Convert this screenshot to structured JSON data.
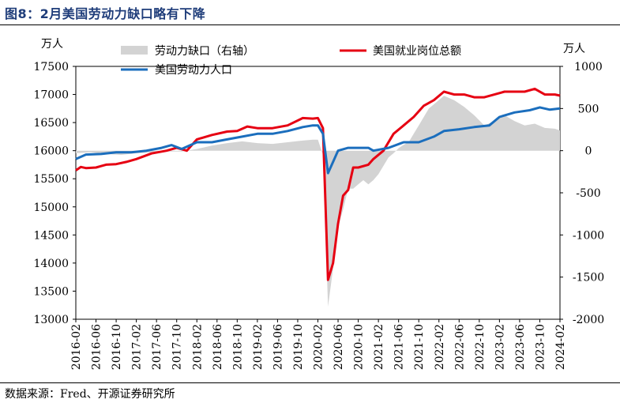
{
  "title": "图8：2月美国劳动力缺口略有下降",
  "source": "数据来源：Fred、开源证券研究所",
  "chart_data": {
    "type": "line",
    "left_unit": "万人",
    "right_unit": "万人",
    "left_ylim": [
      13000,
      17500
    ],
    "left_yticks": [
      "13000",
      "13500",
      "14000",
      "14500",
      "15000",
      "15500",
      "16000",
      "16500",
      "17000",
      "17500"
    ],
    "right_ylim": [
      -2000,
      1000
    ],
    "right_yticks": [
      "-2000",
      "-1500",
      "-1000",
      "-500",
      "0",
      "500",
      "1000"
    ],
    "x_start": "2016-02",
    "x_end": "2024-02",
    "x_ticks": [
      "2016-02",
      "2016-06",
      "2016-10",
      "2017-02",
      "2017-06",
      "2017-10",
      "2018-02",
      "2018-06",
      "2018-10",
      "2019-02",
      "2019-06",
      "2019-10",
      "2020-02",
      "2020-06",
      "2020-10",
      "2021-02",
      "2021-06",
      "2021-10",
      "2022-02",
      "2022-06",
      "2022-10",
      "2023-02",
      "2023-06",
      "2023-10",
      "2024-02"
    ],
    "legend": "top",
    "series": [
      {
        "name": "劳动力缺口（右轴）",
        "kind": "area",
        "axis": "right",
        "color": "#d3d3d3",
        "points": [
          [
            "2016-02",
            -30
          ],
          [
            "2016-05",
            -20
          ],
          [
            "2016-08",
            -40
          ],
          [
            "2016-11",
            -50
          ],
          [
            "2017-02",
            -30
          ],
          [
            "2017-05",
            -20
          ],
          [
            "2017-08",
            -10
          ],
          [
            "2017-11",
            -10
          ],
          [
            "2018-02",
            20
          ],
          [
            "2018-05",
            60
          ],
          [
            "2018-08",
            90
          ],
          [
            "2018-11",
            110
          ],
          [
            "2019-02",
            90
          ],
          [
            "2019-05",
            80
          ],
          [
            "2019-08",
            100
          ],
          [
            "2019-11",
            120
          ],
          [
            "2020-01",
            130
          ],
          [
            "2020-02",
            130
          ],
          [
            "2020-03",
            -50
          ],
          [
            "2020-04",
            -1850
          ],
          [
            "2020-05",
            -1400
          ],
          [
            "2020-06",
            -900
          ],
          [
            "2020-07",
            -700
          ],
          [
            "2020-08",
            -450
          ],
          [
            "2020-09",
            -450
          ],
          [
            "2020-10",
            -400
          ],
          [
            "2020-11",
            -350
          ],
          [
            "2020-12",
            -400
          ],
          [
            "2021-01",
            -350
          ],
          [
            "2021-02",
            -280
          ],
          [
            "2021-03",
            -180
          ],
          [
            "2021-04",
            -80
          ],
          [
            "2021-05",
            -30
          ],
          [
            "2021-06",
            30
          ],
          [
            "2021-07",
            70
          ],
          [
            "2021-08",
            100
          ],
          [
            "2021-09",
            200
          ],
          [
            "2021-10",
            300
          ],
          [
            "2021-11",
            400
          ],
          [
            "2021-12",
            500
          ],
          [
            "2022-01",
            550
          ],
          [
            "2022-03",
            650
          ],
          [
            "2022-05",
            600
          ],
          [
            "2022-07",
            520
          ],
          [
            "2022-09",
            420
          ],
          [
            "2022-11",
            300
          ],
          [
            "2023-01",
            350
          ],
          [
            "2023-03",
            420
          ],
          [
            "2023-05",
            350
          ],
          [
            "2023-07",
            300
          ],
          [
            "2023-09",
            320
          ],
          [
            "2023-11",
            270
          ],
          [
            "2024-01",
            260
          ],
          [
            "2024-02",
            240
          ]
        ]
      },
      {
        "name": "美国就业岗位总额",
        "kind": "line",
        "axis": "left",
        "color": "#e60012",
        "points": [
          [
            "2016-02",
            15650
          ],
          [
            "2016-03",
            15710
          ],
          [
            "2016-04",
            15690
          ],
          [
            "2016-06",
            15700
          ],
          [
            "2016-08",
            15750
          ],
          [
            "2016-10",
            15760
          ],
          [
            "2016-12",
            15800
          ],
          [
            "2017-02",
            15850
          ],
          [
            "2017-05",
            15950
          ],
          [
            "2017-08",
            16000
          ],
          [
            "2017-10",
            16050
          ],
          [
            "2017-12",
            16000
          ],
          [
            "2018-02",
            16200
          ],
          [
            "2018-05",
            16280
          ],
          [
            "2018-08",
            16340
          ],
          [
            "2018-10",
            16350
          ],
          [
            "2018-12",
            16430
          ],
          [
            "2019-02",
            16400
          ],
          [
            "2019-05",
            16400
          ],
          [
            "2019-08",
            16450
          ],
          [
            "2019-11",
            16580
          ],
          [
            "2020-01",
            16570
          ],
          [
            "2020-02",
            16580
          ],
          [
            "2020-03",
            16400
          ],
          [
            "2020-04",
            13700
          ],
          [
            "2020-05",
            14000
          ],
          [
            "2020-06",
            14700
          ],
          [
            "2020-07",
            15200
          ],
          [
            "2020-08",
            15300
          ],
          [
            "2020-09",
            15700
          ],
          [
            "2020-10",
            15700
          ],
          [
            "2020-12",
            15750
          ],
          [
            "2021-01",
            15850
          ],
          [
            "2021-03",
            16000
          ],
          [
            "2021-05",
            16300
          ],
          [
            "2021-07",
            16450
          ],
          [
            "2021-09",
            16600
          ],
          [
            "2021-11",
            16800
          ],
          [
            "2022-01",
            16900
          ],
          [
            "2022-03",
            17050
          ],
          [
            "2022-05",
            17000
          ],
          [
            "2022-07",
            17000
          ],
          [
            "2022-09",
            16950
          ],
          [
            "2022-11",
            16950
          ],
          [
            "2023-01",
            17000
          ],
          [
            "2023-03",
            17050
          ],
          [
            "2023-05",
            17050
          ],
          [
            "2023-07",
            17050
          ],
          [
            "2023-09",
            17100
          ],
          [
            "2023-11",
            17000
          ],
          [
            "2024-01",
            17000
          ],
          [
            "2024-02",
            16980
          ]
        ]
      },
      {
        "name": "美国劳动力人口",
        "kind": "line",
        "axis": "left",
        "color": "#1b6ebd",
        "points": [
          [
            "2016-02",
            15850
          ],
          [
            "2016-04",
            15930
          ],
          [
            "2016-07",
            15940
          ],
          [
            "2016-10",
            15970
          ],
          [
            "2017-01",
            15970
          ],
          [
            "2017-04",
            16000
          ],
          [
            "2017-07",
            16050
          ],
          [
            "2017-09",
            16100
          ],
          [
            "2017-11",
            16030
          ],
          [
            "2018-02",
            16150
          ],
          [
            "2018-05",
            16150
          ],
          [
            "2018-08",
            16200
          ],
          [
            "2018-11",
            16250
          ],
          [
            "2019-02",
            16300
          ],
          [
            "2019-05",
            16300
          ],
          [
            "2019-08",
            16350
          ],
          [
            "2019-11",
            16420
          ],
          [
            "2020-01",
            16450
          ],
          [
            "2020-02",
            16450
          ],
          [
            "2020-03",
            16300
          ],
          [
            "2020-04",
            15600
          ],
          [
            "2020-05",
            15800
          ],
          [
            "2020-06",
            16000
          ],
          [
            "2020-08",
            16050
          ],
          [
            "2020-10",
            16050
          ],
          [
            "2020-12",
            16050
          ],
          [
            "2021-01",
            16000
          ],
          [
            "2021-04",
            16050
          ],
          [
            "2021-07",
            16150
          ],
          [
            "2021-10",
            16150
          ],
          [
            "2022-01",
            16250
          ],
          [
            "2022-03",
            16350
          ],
          [
            "2022-06",
            16380
          ],
          [
            "2022-09",
            16420
          ],
          [
            "2022-12",
            16450
          ],
          [
            "2023-02",
            16600
          ],
          [
            "2023-05",
            16680
          ],
          [
            "2023-08",
            16720
          ],
          [
            "2023-10",
            16770
          ],
          [
            "2023-12",
            16730
          ],
          [
            "2024-02",
            16750
          ]
        ]
      }
    ]
  }
}
